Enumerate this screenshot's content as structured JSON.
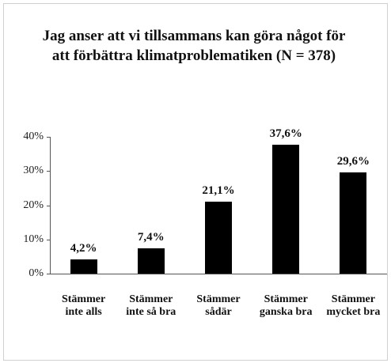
{
  "chart_data": {
    "type": "bar",
    "title": "Jag anser att vi tillsammans kan göra något för att förbättra klimatproblematiken (N = 378)",
    "categories": [
      "Stämmer inte alls",
      "Stämmer inte så bra",
      "Stämmer sådär",
      "Stämmer ganska bra",
      "Stämmer mycket bra"
    ],
    "values": [
      4.2,
      7.4,
      21.1,
      37.6,
      29.6
    ],
    "value_labels": [
      "4,2%",
      "7,4%",
      "21,1%",
      "37,6%",
      "29,6%"
    ],
    "color": "#000000",
    "ylim": [
      0,
      40
    ],
    "yticks": [
      {
        "value": 0,
        "label": "0%"
      },
      {
        "value": 10,
        "label": "10%"
      },
      {
        "value": 20,
        "label": "20%"
      },
      {
        "value": 30,
        "label": "30%"
      },
      {
        "value": 40,
        "label": "40%"
      }
    ]
  }
}
